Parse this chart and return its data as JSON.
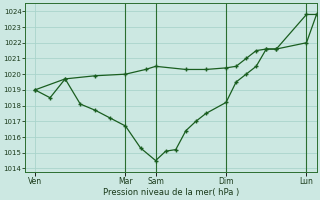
{
  "background_color": "#cce8e2",
  "grid_color": "#aad4cc",
  "line_color": "#1a5e20",
  "xlabel": "Pression niveau de la mer( hPa )",
  "ylim": [
    1013.8,
    1024.5
  ],
  "yticks": [
    1014,
    1015,
    1016,
    1017,
    1018,
    1019,
    1020,
    1021,
    1022,
    1023,
    1024
  ],
  "xtick_labels": [
    "Ven",
    "Mar",
    "Sam",
    "Dim",
    "Lun"
  ],
  "xtick_positions": [
    0,
    9,
    12,
    19,
    27
  ],
  "vline_positions": [
    9,
    12,
    19,
    27
  ],
  "xlim": [
    -1,
    28
  ],
  "line1_x": [
    0,
    3,
    6,
    9,
    11,
    12,
    15,
    17,
    19,
    20,
    21,
    22,
    23,
    24,
    27,
    28
  ],
  "line1_y": [
    1019.0,
    1019.7,
    1019.9,
    1020.0,
    1020.3,
    1020.5,
    1020.3,
    1020.3,
    1020.4,
    1020.5,
    1021.0,
    1021.5,
    1021.6,
    1021.6,
    1022.0,
    1023.8
  ],
  "line2_x": [
    0,
    1.5,
    3,
    4.5,
    6,
    7.5,
    9,
    10.5,
    12,
    13,
    14,
    15,
    16,
    17,
    19,
    20,
    21,
    22,
    23,
    24,
    27,
    28
  ],
  "line2_y": [
    1019.0,
    1018.5,
    1019.7,
    1018.1,
    1017.7,
    1017.2,
    1016.7,
    1015.3,
    1014.5,
    1015.1,
    1015.2,
    1016.4,
    1017.0,
    1017.5,
    1018.2,
    1019.5,
    1020.0,
    1020.5,
    1021.6,
    1021.6,
    1023.8,
    1023.8
  ]
}
